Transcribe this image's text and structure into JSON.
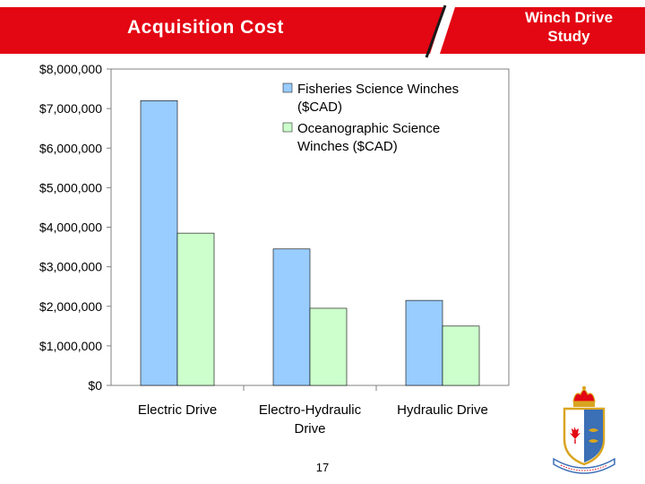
{
  "header": {
    "title": "Acquisition Cost",
    "study": "Winch Drive Study"
  },
  "colors": {
    "banner": "#e30613",
    "series_fisheries": "#99ccff",
    "series_oceanographic": "#ccffcc",
    "crest_blue": "#3b6fb6",
    "crest_red": "#e30613",
    "crest_gold": "#d9a520"
  },
  "chart_data": {
    "type": "bar",
    "title": "",
    "xlabel": "",
    "ylabel": "",
    "categories": [
      "Electric Drive",
      "Electro-Hydraulic Drive",
      "Hydraulic Drive"
    ],
    "category_lines": [
      [
        "Electric Drive"
      ],
      [
        "Electro-Hydraulic",
        "Drive"
      ],
      [
        "Hydraulic Drive"
      ]
    ],
    "series": [
      {
        "name": "Fisheries Science Winches ($CAD)",
        "legend_lines": [
          "Fisheries Science Winches",
          "($CAD)"
        ],
        "values": [
          7200000,
          3450000,
          2150000
        ]
      },
      {
        "name": "Oceanographic Science Winches ($CAD)",
        "legend_lines": [
          "Oceanographic Science",
          "Winches ($CAD)"
        ],
        "values": [
          3850000,
          1950000,
          1500000
        ]
      }
    ],
    "ylim": [
      0,
      8000000
    ],
    "yticks": [
      0,
      1000000,
      2000000,
      3000000,
      4000000,
      5000000,
      6000000,
      7000000,
      8000000
    ],
    "ytick_labels": [
      "$0",
      "$1,000,000",
      "$2,000,000",
      "$3,000,000",
      "$4,000,000",
      "$5,000,000",
      "$6,000,000",
      "$7,000,000",
      "$8,000,000"
    ],
    "grid": false,
    "legend_position": "top-right"
  },
  "footer": {
    "page_number": "17"
  },
  "logo": {
    "name": "coat-of-arms-icon"
  }
}
